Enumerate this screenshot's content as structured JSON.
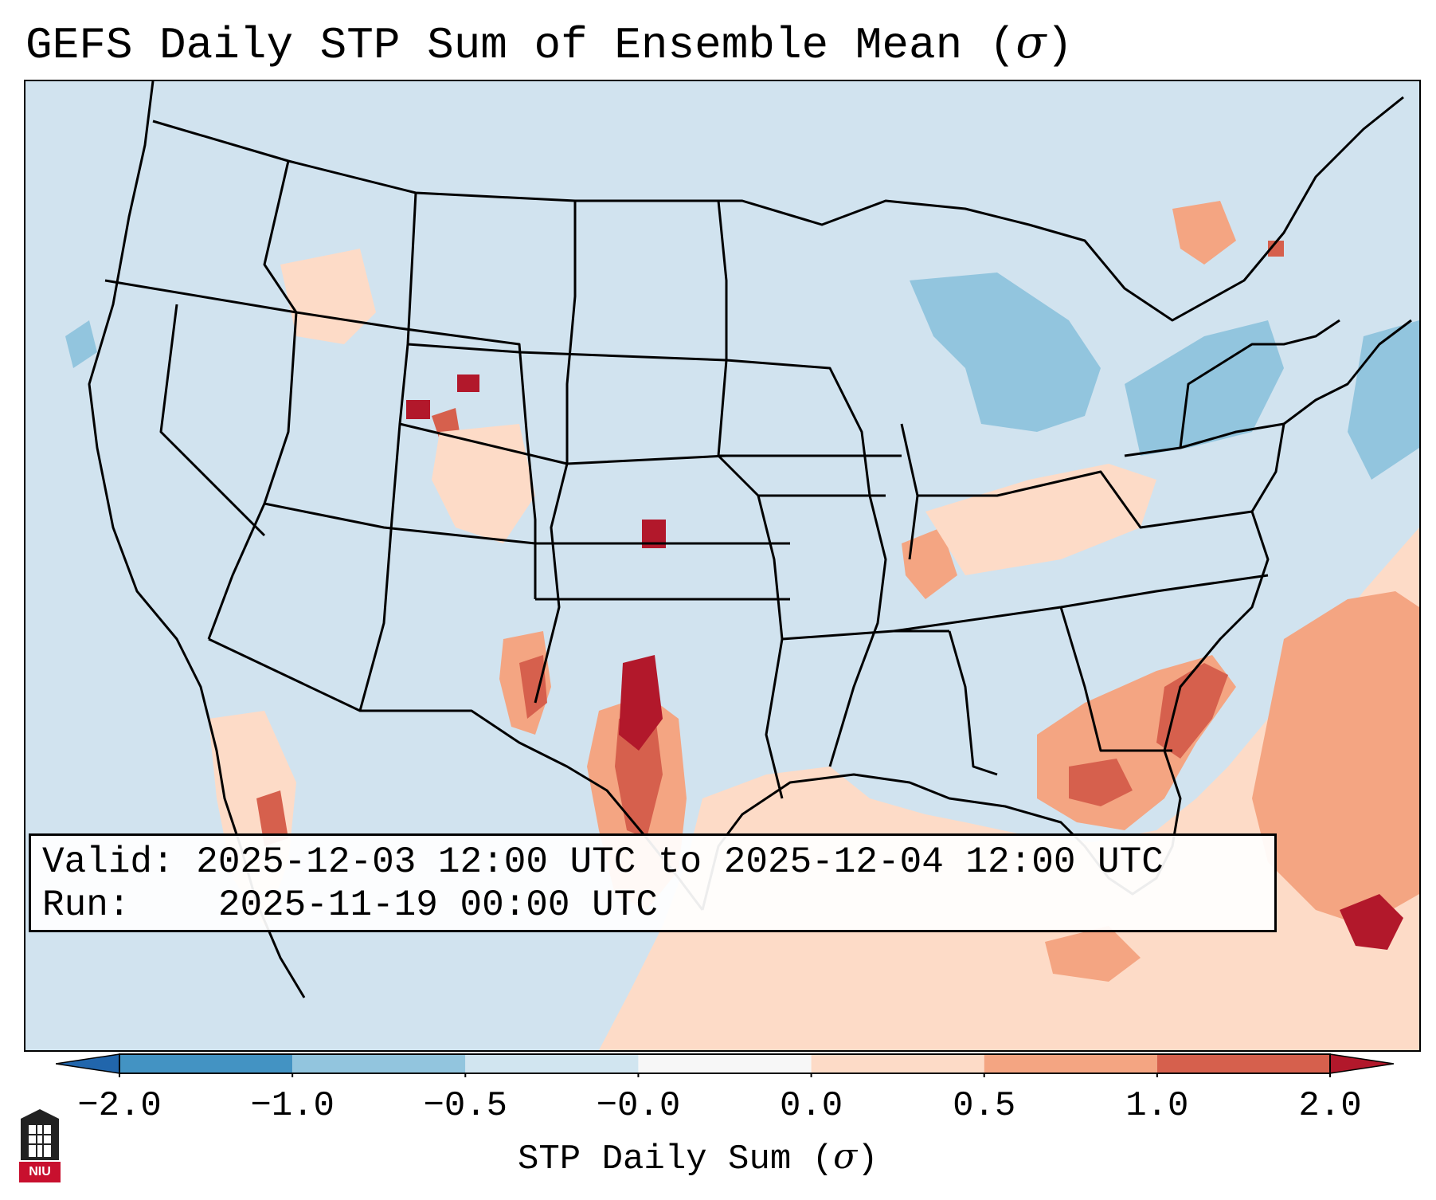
{
  "title": {
    "text": "GEFS Daily STP Sum of Ensemble Mean (",
    "symbol": "σ",
    "close": ")"
  },
  "info": {
    "valid_label": "Valid:",
    "valid_value": "2025-12-03 12:00 UTC to 2025-12-04 12:00 UTC",
    "run_label": "Run:",
    "run_value": "2025-11-19 00:00 UTC"
  },
  "colorbar": {
    "label_text": "STP Daily Sum (",
    "label_symbol": "σ",
    "label_close": ")",
    "ticks": [
      "−2.0",
      "−1.0",
      "−0.5",
      "−0.0",
      "0.0",
      "0.5",
      "1.0",
      "2.0"
    ],
    "bins": [
      {
        "range": "< -2.0",
        "color": "#2166ac"
      },
      {
        "range": "-2.0 to -1.0",
        "color": "#4393c3"
      },
      {
        "range": "-1.0 to -0.5",
        "color": "#92c5de"
      },
      {
        "range": "-0.5 to -0.0",
        "color": "#d1e5f0"
      },
      {
        "range": "-0.0 to 0.0",
        "color": "#f7f7f7"
      },
      {
        "range": "0.0 to 0.5",
        "color": "#fddbc7"
      },
      {
        "range": "0.5 to 1.0",
        "color": "#f4a582"
      },
      {
        "range": "1.0 to 2.0",
        "color": "#d6604d"
      },
      {
        "range": "> 2.0",
        "color": "#b2182b"
      }
    ]
  },
  "logo": {
    "text": "NIU",
    "color": "#c8102e"
  }
}
